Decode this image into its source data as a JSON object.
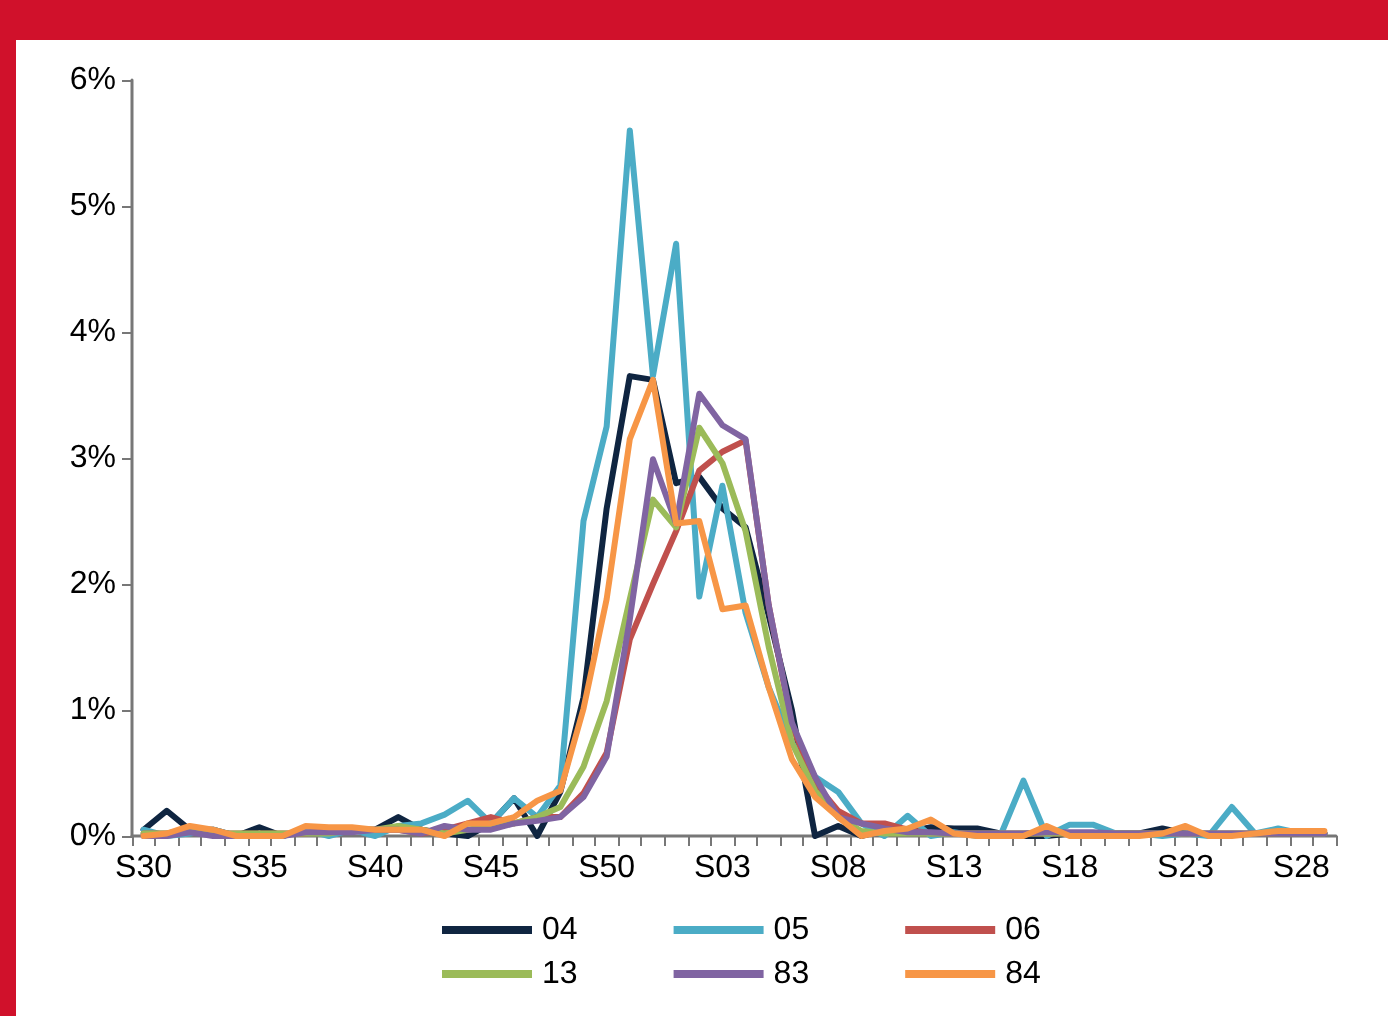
{
  "chart_data": {
    "type": "line",
    "categories": [
      "S30",
      null,
      null,
      null,
      null,
      "S35",
      null,
      null,
      null,
      null,
      "S40",
      null,
      null,
      null,
      null,
      "S45",
      null,
      null,
      null,
      null,
      "S50",
      null,
      null,
      null,
      null,
      "S03",
      null,
      null,
      null,
      null,
      "S08",
      null,
      null,
      null,
      null,
      "S13",
      null,
      null,
      null,
      null,
      "S18",
      null,
      null,
      null,
      null,
      "S23",
      null,
      null,
      null,
      null,
      "S28",
      null
    ],
    "series": [
      {
        "name": "04",
        "color": "#0f2541",
        "values": [
          0.05,
          0.2,
          0.05,
          0.05,
          0,
          0.07,
          0,
          0.05,
          0.05,
          0.05,
          0.05,
          0.15,
          0.05,
          0.02,
          0,
          0.1,
          0.3,
          0,
          0.35,
          1.1,
          2.6,
          3.65,
          3.62,
          2.8,
          2.85,
          2.6,
          2.45,
          1.75,
          1.0,
          0,
          0.08,
          0,
          0.05,
          0.03,
          0.07,
          0.06,
          0.06,
          0.02,
          0,
          0,
          0.02,
          0.02,
          0.02,
          0.02,
          0.06,
          0.02,
          0.01,
          0.01,
          0.02,
          0.02,
          0.02,
          0.02
        ]
      },
      {
        "name": "05",
        "color": "#4bacc6",
        "values": [
          0.05,
          0,
          0.02,
          0.05,
          0,
          0,
          0,
          0.05,
          0,
          0.05,
          0,
          0.08,
          0.1,
          0.17,
          0.28,
          0.1,
          0.3,
          0.15,
          0.4,
          2.5,
          3.25,
          5.6,
          3.65,
          4.7,
          1.9,
          2.78,
          1.77,
          1.18,
          0.74,
          0.47,
          0.35,
          0.1,
          0,
          0.16,
          0,
          0.03,
          0,
          0,
          0.44,
          0,
          0.09,
          0.09,
          0.02,
          0.02,
          0,
          0.02,
          0,
          0.23,
          0.02,
          0.06,
          0.02,
          0.02
        ]
      },
      {
        "name": "06",
        "color": "#c0504d",
        "values": [
          0.02,
          0.02,
          0.05,
          0.02,
          0.02,
          0.02,
          0.02,
          0.02,
          0.05,
          0.05,
          0.05,
          0.05,
          0.02,
          0.05,
          0.1,
          0.15,
          0.1,
          0.15,
          0.15,
          0.34,
          0.66,
          1.56,
          2.0,
          2.42,
          2.9,
          3.05,
          3.14,
          1.83,
          0.88,
          0.42,
          0.2,
          0.1,
          0.1,
          0.05,
          0.02,
          0.02,
          0.02,
          0.02,
          0.02,
          0.02,
          0.02,
          0.02,
          0.02,
          0.02,
          0.02,
          0.02,
          0.02,
          0.02,
          0.02,
          0.02,
          0.02,
          0.02
        ]
      },
      {
        "name": "13",
        "color": "#9bbb59",
        "values": [
          0.02,
          0.02,
          0.05,
          0.02,
          0.02,
          0.02,
          0.02,
          0.02,
          0.02,
          0.05,
          0.05,
          0.08,
          0.05,
          0.02,
          0.05,
          0.08,
          0.1,
          0.15,
          0.23,
          0.55,
          1.07,
          1.88,
          2.67,
          2.45,
          3.24,
          2.96,
          2.42,
          1.5,
          0.74,
          0.36,
          0.15,
          0.04,
          0.02,
          0.02,
          0.02,
          0.02,
          0.02,
          0.02,
          0.02,
          0.02,
          0.02,
          0.02,
          0.02,
          0.02,
          0.02,
          0.02,
          0.02,
          0.02,
          0.02,
          0.02,
          0.02,
          0.02
        ]
      },
      {
        "name": "83",
        "color": "#8064a2",
        "values": [
          0,
          0,
          0.03,
          0,
          0,
          0,
          0,
          0.03,
          0.03,
          0.03,
          0.05,
          0.05,
          0.02,
          0.08,
          0.05,
          0.05,
          0.1,
          0.12,
          0.15,
          0.31,
          0.63,
          1.72,
          2.99,
          2.48,
          3.51,
          3.26,
          3.15,
          1.83,
          0.9,
          0.47,
          0.15,
          0.1,
          0.06,
          0.03,
          0.03,
          0.02,
          0.02,
          0.02,
          0.02,
          0.03,
          0.03,
          0.03,
          0.02,
          0.02,
          0.02,
          0.02,
          0.02,
          0.02,
          0.02,
          0.02,
          0.02,
          0.02
        ]
      },
      {
        "name": "84",
        "color": "#f79646",
        "values": [
          0,
          0.02,
          0.08,
          0.05,
          0,
          0,
          0,
          0.08,
          0.07,
          0.07,
          0.05,
          0.05,
          0.05,
          0,
          0.1,
          0.1,
          0.15,
          0.28,
          0.36,
          1.01,
          1.88,
          3.15,
          3.62,
          2.48,
          2.5,
          1.8,
          1.83,
          1.18,
          0.61,
          0.31,
          0.15,
          0,
          0.04,
          0.06,
          0.13,
          0.02,
          0,
          0,
          0,
          0.08,
          0,
          0,
          0,
          0,
          0.02,
          0.08,
          0,
          0,
          0.02,
          0.04,
          0.04,
          0.04
        ]
      }
    ],
    "ylim": [
      0,
      6
    ],
    "yticks": [
      {
        "value": 0,
        "label": "0%"
      },
      {
        "value": 1,
        "label": "1%"
      },
      {
        "value": 2,
        "label": "2%"
      },
      {
        "value": 3,
        "label": "3%"
      },
      {
        "value": 4,
        "label": "4%"
      },
      {
        "value": 5,
        "label": "5%"
      },
      {
        "value": 6,
        "label": "6%"
      }
    ],
    "legend": "bottom",
    "marker": "none",
    "line_style": "solid"
  }
}
